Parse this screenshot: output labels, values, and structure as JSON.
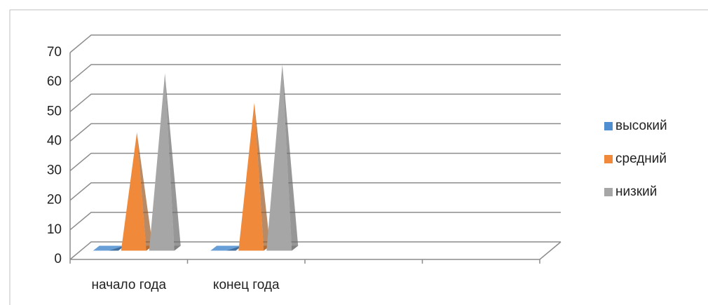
{
  "chart_data": {
    "type": "pyramid3d",
    "categories": [
      "начало года",
      "конец года",
      null,
      null
    ],
    "series": [
      {
        "name": "высокий",
        "color": "#4f8ed0",
        "values": [
          0,
          0,
          null,
          null
        ]
      },
      {
        "name": "средний",
        "color": "#f08a3a",
        "values": [
          40,
          50,
          null,
          null
        ]
      },
      {
        "name": "низкий",
        "color": "#a6a6a6",
        "values": [
          60,
          63,
          null,
          null
        ]
      }
    ],
    "ylim": [
      0,
      70
    ],
    "yticks": [
      0,
      10,
      20,
      30,
      40,
      50,
      60,
      70
    ],
    "grid": true,
    "legend": "right"
  }
}
